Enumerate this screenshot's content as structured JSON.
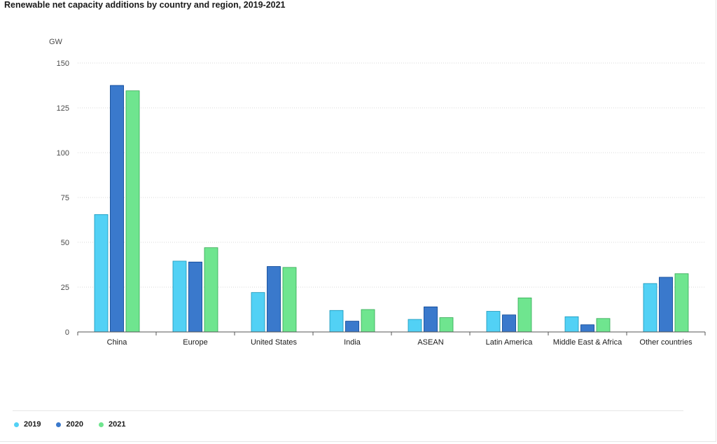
{
  "chart_data": {
    "type": "bar",
    "title": "Renewable net capacity additions by country and region, 2019-2021",
    "ylabel": "GW",
    "xlabel": "",
    "ylim": [
      0,
      150
    ],
    "yticks": [
      0,
      25,
      50,
      75,
      100,
      125,
      150
    ],
    "grid": true,
    "legend_position": "bottom-left",
    "categories": [
      "China",
      "Europe",
      "United States",
      "India",
      "ASEAN",
      "Latin America",
      "Middle East & Africa",
      "Other countries"
    ],
    "series": [
      {
        "name": "2019",
        "color": "#52d1f5",
        "values": [
          65.5,
          39.5,
          22,
          12,
          7,
          11.5,
          8.5,
          27
        ]
      },
      {
        "name": "2020",
        "color": "#3a79cc",
        "values": [
          137.5,
          39,
          36.5,
          6,
          14,
          9.5,
          4,
          30.5
        ]
      },
      {
        "name": "2021",
        "color": "#6fe58f",
        "values": [
          134.5,
          47,
          36,
          12.5,
          8,
          19,
          7.5,
          32.5
        ]
      }
    ]
  }
}
